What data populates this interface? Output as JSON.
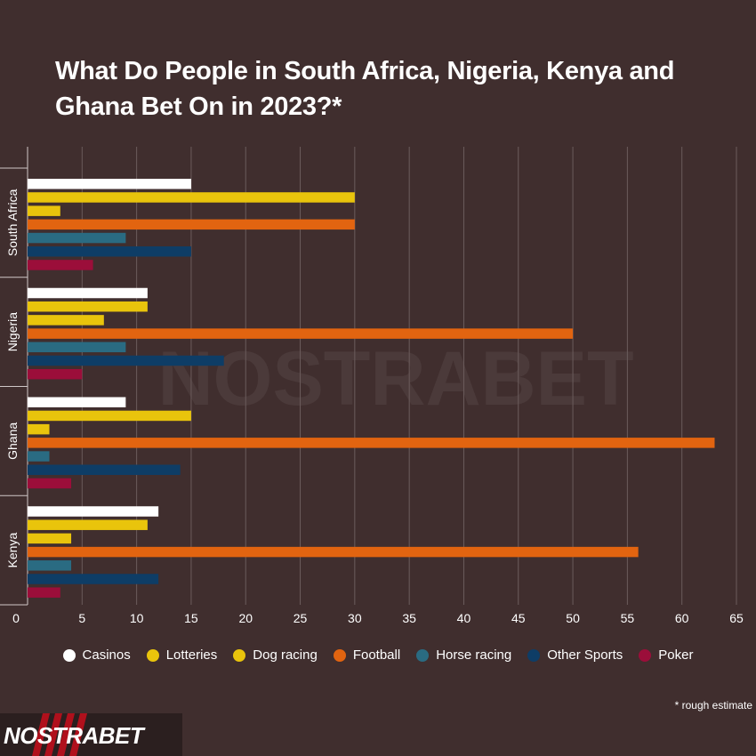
{
  "title": "What Do People in South Africa, Nigeria, Kenya and Ghana Bet On in 2023?*",
  "footnote": "* rough estimate",
  "logo_text": "NOSTRABET",
  "watermark_text": "NOSTRABET",
  "legend": [
    {
      "label": "Casinos",
      "color": "#ffffff"
    },
    {
      "label": "Lotteries",
      "color": "#e9c40c"
    },
    {
      "label": "Dog racing",
      "color": "#e9c40c"
    },
    {
      "label": "Football",
      "color": "#e26410"
    },
    {
      "label": "Horse racing",
      "color": "#2a6b82"
    },
    {
      "label": "Other Sports",
      "color": "#0e3d66"
    },
    {
      "label": "Poker",
      "color": "#9b0e3a"
    }
  ],
  "chart_data": {
    "type": "bar",
    "orientation": "horizontal",
    "categories": [
      "South Africa",
      "Nigeria",
      "Ghana",
      "Kenya"
    ],
    "series": [
      {
        "name": "Casinos",
        "values": [
          15,
          11,
          9,
          12
        ]
      },
      {
        "name": "Lotteries",
        "values": [
          30,
          11,
          15,
          11
        ]
      },
      {
        "name": "Dog racing",
        "values": [
          3,
          7,
          2,
          4
        ]
      },
      {
        "name": "Football",
        "values": [
          30,
          50,
          63,
          56
        ]
      },
      {
        "name": "Horse racing",
        "values": [
          9,
          9,
          2,
          4
        ]
      },
      {
        "name": "Other Sports",
        "values": [
          15,
          18,
          14,
          12
        ]
      },
      {
        "name": "Poker",
        "values": [
          6,
          5,
          4,
          3
        ]
      }
    ],
    "xlim": [
      0,
      65
    ],
    "xticks": [
      0,
      5,
      10,
      15,
      20,
      25,
      30,
      35,
      40,
      45,
      50,
      55,
      60,
      65
    ],
    "grid": true,
    "legend_position": "bottom"
  }
}
